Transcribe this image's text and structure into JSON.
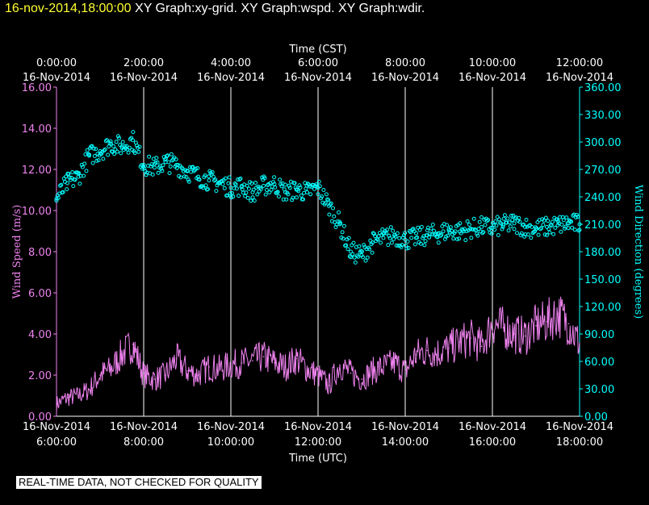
{
  "header": {
    "timestamp": "16-nov-2014,18:00:00",
    "graph_titles": "XY Graph:xy-grid.  XY Graph:wspd.  XY Graph:wdir."
  },
  "disclaimer": "REAL-TIME DATA, NOT CHECKED FOR QUALITY",
  "colors": {
    "background": "#000000",
    "wind_speed": "#ee82ee",
    "wind_direction": "#00ffff",
    "grid": "#ffffff",
    "timestamp": "#ffff33"
  },
  "chart_data": {
    "type": "line",
    "top_axis_label": "Time (CST)",
    "bottom_axis_label": "Time (UTC)",
    "left_axis_label": "Wind Speed (m/s)",
    "right_axis_label": "Wind Direction (degrees)",
    "x_range_hours_utc": [
      6.0,
      18.0
    ],
    "top_ticks": [
      {
        "time": "0:00:00",
        "date": "16-Nov-2014"
      },
      {
        "time": "2:00:00",
        "date": "16-Nov-2014"
      },
      {
        "time": "4:00:00",
        "date": "16-Nov-2014"
      },
      {
        "time": "6:00:00",
        "date": "16-Nov-2014"
      },
      {
        "time": "8:00:00",
        "date": "16-Nov-2014"
      },
      {
        "time": "10:00:00",
        "date": "16-Nov-2014"
      },
      {
        "time": "12:00:00",
        "date": "16-Nov-2014"
      }
    ],
    "bottom_ticks": [
      {
        "date": "16-Nov-2014",
        "time": "6:00:00"
      },
      {
        "date": "16-Nov-2014",
        "time": "8:00:00"
      },
      {
        "date": "16-Nov-2014",
        "time": "10:00:00"
      },
      {
        "date": "16-Nov-2014",
        "time": "12:00:00"
      },
      {
        "date": "16-Nov-2014",
        "time": "14:00:00"
      },
      {
        "date": "16-Nov-2014",
        "time": "16:00:00"
      },
      {
        "date": "16-Nov-2014",
        "time": "18:00:00"
      }
    ],
    "left_ticks": [
      "0.00",
      "2.00",
      "4.00",
      "6.00",
      "8.00",
      "10.00",
      "12.00",
      "14.00",
      "16.00"
    ],
    "right_ticks": [
      "0.00",
      "30.00",
      "60.00",
      "90.00",
      "120.00",
      "150.00",
      "180.00",
      "210.00",
      "240.00",
      "270.00",
      "300.00",
      "330.00",
      "360.00"
    ],
    "left_range": [
      0,
      16
    ],
    "right_range": [
      0,
      360
    ],
    "series": [
      {
        "name": "Wind Speed (m/s)",
        "style": "line",
        "axis": "left",
        "x_hours_utc": [
          6.0,
          6.25,
          6.5,
          6.75,
          7.0,
          7.25,
          7.5,
          7.75,
          8.0,
          8.25,
          8.5,
          8.75,
          9.0,
          9.25,
          9.5,
          9.75,
          10.0,
          10.25,
          10.5,
          10.75,
          11.0,
          11.25,
          11.5,
          11.75,
          12.0,
          12.25,
          12.5,
          12.75,
          13.0,
          13.25,
          13.5,
          13.75,
          14.0,
          14.25,
          14.5,
          14.75,
          15.0,
          15.25,
          15.5,
          15.75,
          16.0,
          16.25,
          16.5,
          16.75,
          17.0,
          17.25,
          17.5,
          17.75,
          18.0
        ],
        "values": [
          0.6,
          0.9,
          1.0,
          1.3,
          2.0,
          2.3,
          3.0,
          3.5,
          2.0,
          1.8,
          2.0,
          2.8,
          2.2,
          2.0,
          2.4,
          2.3,
          2.5,
          2.6,
          2.7,
          2.9,
          2.6,
          2.4,
          2.8,
          2.3,
          2.0,
          1.5,
          2.5,
          2.1,
          1.8,
          2.2,
          2.4,
          2.6,
          2.2,
          3.0,
          3.2,
          3.1,
          3.3,
          3.6,
          3.8,
          3.4,
          4.5,
          4.3,
          4.0,
          3.9,
          4.4,
          4.6,
          5.0,
          4.5,
          3.5
        ]
      },
      {
        "name": "Wind Direction (degrees)",
        "style": "markers",
        "axis": "right",
        "x_hours_utc": [
          6.0,
          6.25,
          6.5,
          6.75,
          7.0,
          7.25,
          7.5,
          7.75,
          8.0,
          8.25,
          8.5,
          8.75,
          9.0,
          9.25,
          9.5,
          9.75,
          10.0,
          10.25,
          10.5,
          10.75,
          11.0,
          11.25,
          11.5,
          11.75,
          12.0,
          12.25,
          12.5,
          12.75,
          13.0,
          13.25,
          13.5,
          13.75,
          14.0,
          14.25,
          14.5,
          14.75,
          15.0,
          15.25,
          15.5,
          15.75,
          16.0,
          16.25,
          16.5,
          16.75,
          17.0,
          17.25,
          17.5,
          17.75,
          18.0
        ],
        "values": [
          238,
          255,
          262,
          285,
          290,
          298,
          295,
          302,
          275,
          272,
          278,
          275,
          268,
          262,
          258,
          255,
          250,
          252,
          245,
          252,
          254,
          245,
          248,
          245,
          250,
          230,
          210,
          180,
          176,
          190,
          195,
          198,
          193,
          195,
          198,
          200,
          203,
          202,
          205,
          207,
          206,
          209,
          211,
          207,
          205,
          207,
          209,
          211,
          210
        ]
      }
    ]
  }
}
